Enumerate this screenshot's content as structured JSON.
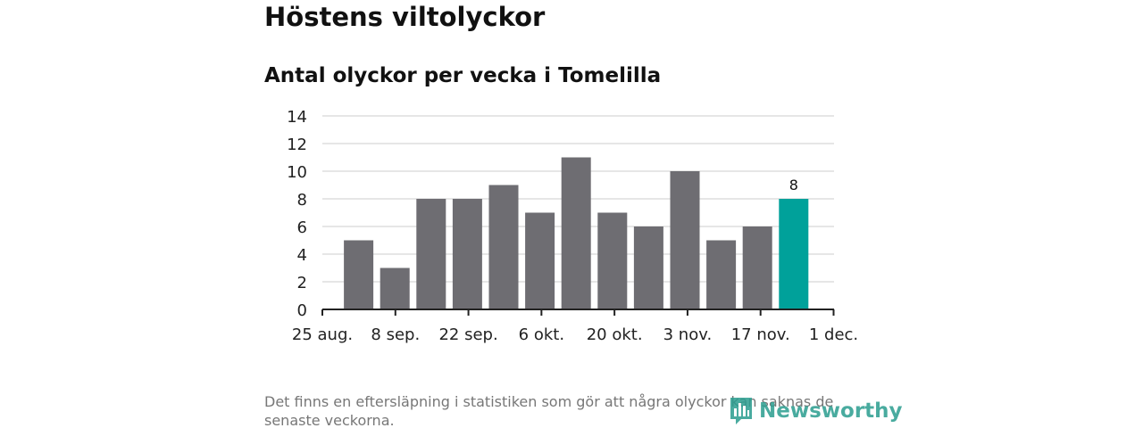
{
  "header": {
    "title": "Höstens viltolyckor"
  },
  "chart_data": {
    "type": "bar",
    "title": "Antal olyckor per vecka i Tomelilla",
    "xlabel": "",
    "ylabel": "",
    "ylim": [
      0,
      14
    ],
    "yticks": [
      0,
      2,
      4,
      6,
      8,
      10,
      12,
      14
    ],
    "x_tick_labels": [
      "25 aug.",
      "8 sep.",
      "22 sep.",
      "6 okt.",
      "20 okt.",
      "3 nov.",
      "17 nov.",
      "1 dec."
    ],
    "values": [
      5,
      3,
      8,
      8,
      9,
      7,
      11,
      7,
      6,
      10,
      5,
      6,
      8
    ],
    "highlight_index": 12,
    "highlight_label": "8",
    "grid": true,
    "colors": {
      "bar": "#6e6d72",
      "highlight": "#00a19a",
      "grid": "#dddddd",
      "axis": "#222222"
    }
  },
  "footer": {
    "note": "Det finns en eftersläpning i statistiken som gör att några olyckor kan saknas de senaste veckorna.",
    "logo_text": "Newsworthy",
    "logo_icon": "newsworthy-bar-chart-icon"
  }
}
